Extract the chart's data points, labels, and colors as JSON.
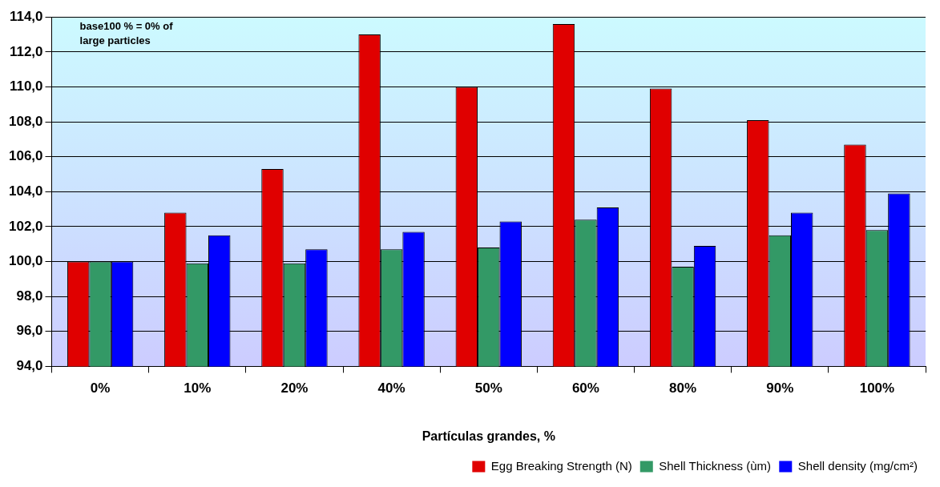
{
  "chart_data": {
    "type": "bar",
    "xlabel": "Partículas grandes, %",
    "categories": [
      "0%",
      "10%",
      "20%",
      "40%",
      "50%",
      "60%",
      "80%",
      "90%",
      "100%"
    ],
    "series": [
      {
        "name": "Egg Breaking Strength (N)",
        "color": "#e00000",
        "values": [
          100.0,
          102.8,
          105.3,
          113.0,
          110.0,
          113.6,
          109.9,
          108.1,
          106.7
        ]
      },
      {
        "name": "Shell Thickness (ùm)",
        "color": "#339966",
        "values": [
          100.0,
          99.9,
          99.9,
          100.7,
          100.8,
          102.4,
          99.7,
          101.5,
          101.8
        ]
      },
      {
        "name": "Shell density (mg/cm²)",
        "color": "#0000ff",
        "values": [
          100.0,
          101.5,
          100.7,
          101.7,
          102.3,
          103.1,
          100.9,
          102.8,
          103.9
        ]
      }
    ],
    "ylim": [
      94,
      114
    ],
    "yticks": [
      {
        "value": 94,
        "label": "94,0"
      },
      {
        "value": 96,
        "label": "96,0"
      },
      {
        "value": 98,
        "label": "98,0"
      },
      {
        "value": 100,
        "label": "100,0"
      },
      {
        "value": 102,
        "label": "102,0"
      },
      {
        "value": 104,
        "label": "104,0"
      },
      {
        "value": 106,
        "label": "106,0"
      },
      {
        "value": 108,
        "label": "108,0"
      },
      {
        "value": 110,
        "label": "110,0"
      },
      {
        "value": 112,
        "label": "112,0"
      },
      {
        "value": 114,
        "label": "114,0"
      }
    ],
    "grid": "y",
    "legend": "bottom right",
    "annotations": [
      "base100 % = 0% of large particles"
    ]
  }
}
